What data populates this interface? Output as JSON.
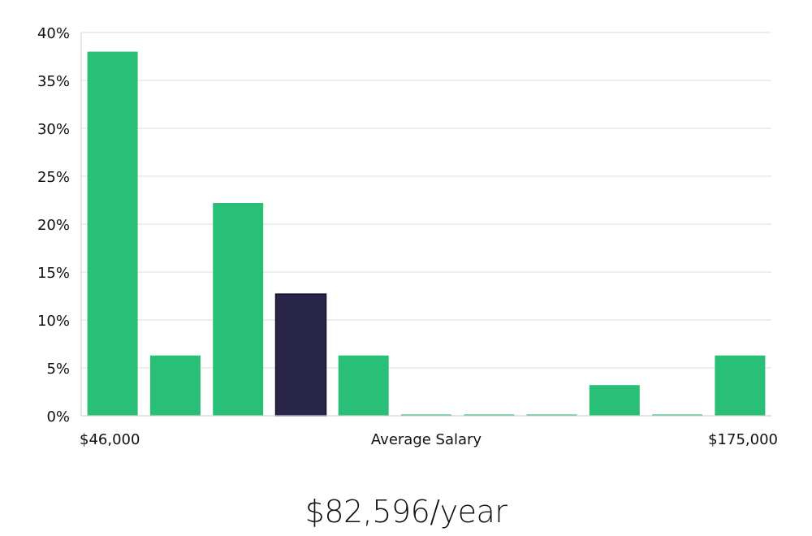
{
  "chart_data": {
    "type": "bar",
    "categories": [
      "1",
      "2",
      "3",
      "4",
      "5",
      "6",
      "7",
      "8",
      "9",
      "10",
      "11"
    ],
    "values": [
      38,
      6.3,
      22.2,
      12.7,
      6.3,
      0,
      0,
      0,
      3.2,
      0,
      6.3
    ],
    "highlight_index": 3,
    "ylim": [
      0,
      40
    ],
    "yticks": [
      0,
      5,
      10,
      15,
      20,
      25,
      30,
      35,
      40
    ],
    "ytick_format": "percent",
    "grid": true,
    "xlabel": "Average Salary",
    "x_min_label": "$46,000",
    "x_max_label": "$175,000",
    "colors": {
      "bar": "#2abf76",
      "highlight": "#29264a",
      "highlight_border": "#14122e"
    }
  },
  "summary": {
    "average_salary": "$82,596/year"
  }
}
